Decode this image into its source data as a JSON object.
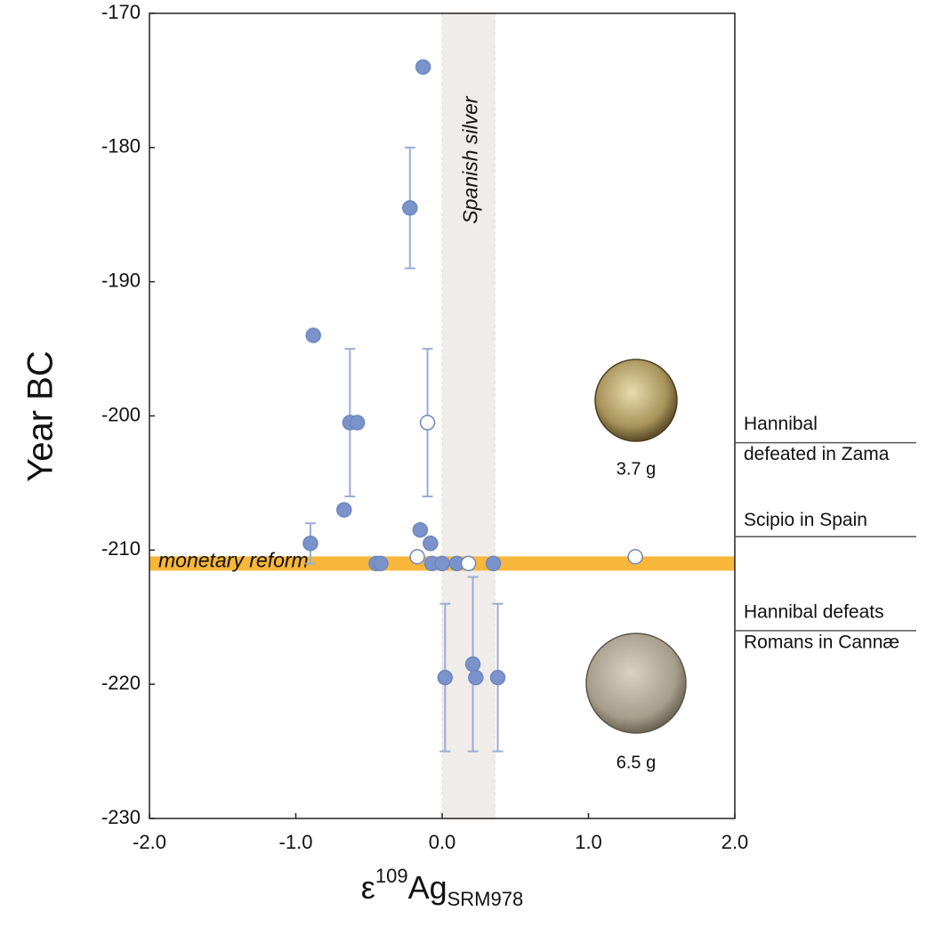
{
  "chart_data": {
    "type": "scatter",
    "y_label": "Year BC",
    "x_label": {
      "base": "ε",
      "sup": "109",
      "main": "Ag",
      "sub": "SRM978"
    },
    "xlim": [
      -2,
      2
    ],
    "xticks": [
      {
        "value": -2,
        "label": "-2.0"
      },
      {
        "value": -1,
        "label": "-1.0"
      },
      {
        "value": 0,
        "label": "0.0"
      },
      {
        "value": 1,
        "label": "1.0"
      },
      {
        "value": 2,
        "label": "2.0"
      }
    ],
    "ylim": [
      -230,
      -170
    ],
    "yticks": [
      -230,
      -220,
      -210,
      -200,
      -190,
      -180,
      -170
    ],
    "series": [
      {
        "color": "#7b93cb",
        "x": [
          -0.13,
          -0.22,
          -0.88,
          -0.63,
          -0.58,
          -0.67,
          -0.9,
          -0.15,
          -0.08,
          -0.45,
          -0.42,
          -0.07,
          0.0,
          0.1,
          0.35,
          0.02,
          0.21,
          0.23,
          0.38
        ],
        "values": [
          -174,
          -184.5,
          -194,
          -200.5,
          -200.5,
          -207,
          -209.5,
          -208.5,
          -209.5,
          -211,
          -211,
          -211,
          -211,
          -211,
          -211,
          -219.5,
          -218.5,
          -219.5,
          -219.5
        ],
        "yerr": [
          null,
          4.5,
          null,
          5.5,
          null,
          null,
          1.5,
          null,
          null,
          null,
          null,
          null,
          null,
          null,
          null,
          5.5,
          6.5,
          null,
          5.5
        ]
      },
      {
        "color": "#ffffff",
        "x": [
          -0.1,
          -0.17,
          0.18,
          1.32
        ],
        "values": [
          -200.5,
          -210.5,
          -211,
          -210.5
        ],
        "yerr": [
          5.5,
          null,
          null,
          null
        ]
      }
    ],
    "vband": {
      "label": "Spanish silver",
      "xlim": [
        0,
        0.36
      ],
      "color": "#efece9"
    },
    "hband": {
      "label": "monetary reform",
      "y": -211,
      "color": "#f8b73a"
    },
    "events": [
      {
        "lines": [
          "Hannibal",
          "defeated in Zama"
        ],
        "y": -202
      },
      {
        "lines": [
          "Scipio in Spain"
        ],
        "y": -209
      },
      {
        "lines": [
          "Hannibal defeats",
          "Romans in Cannæ"
        ],
        "y": -216
      }
    ],
    "coins": [
      {
        "label": "3.7 g"
      },
      {
        "label": "6.5 g"
      }
    ]
  }
}
